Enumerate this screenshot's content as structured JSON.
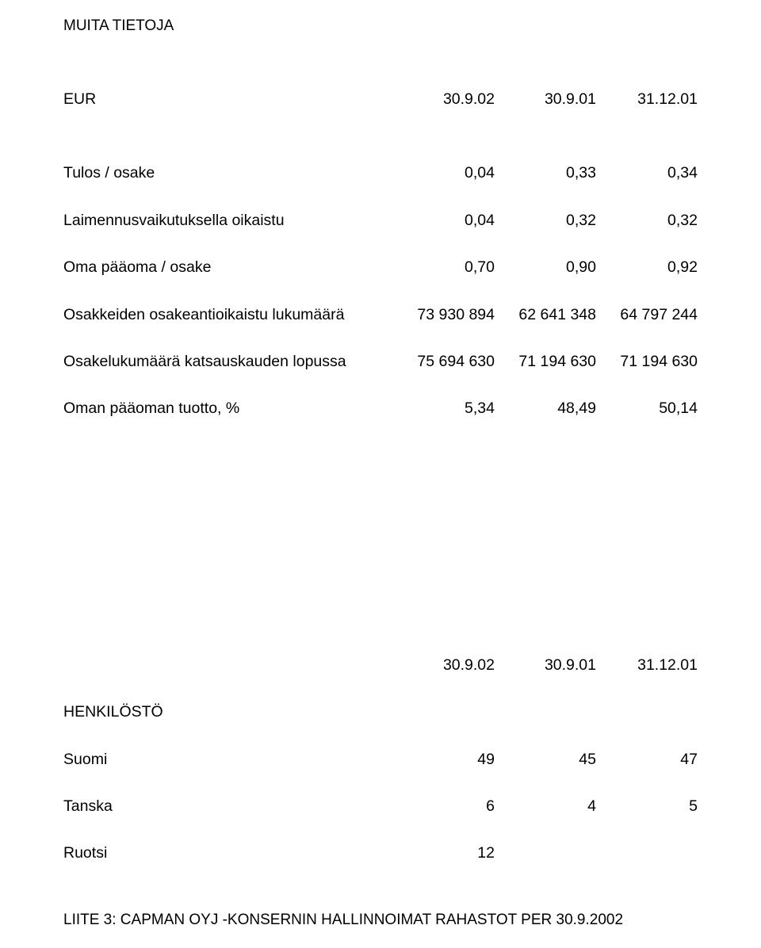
{
  "section1": {
    "title": "MUITA TIETOJA",
    "header": {
      "currency": "EUR",
      "c1": "30.9.02",
      "c2": "30.9.01",
      "c3": "31.12.01"
    },
    "rows": [
      {
        "label": "Tulos / osake",
        "c1": "0,04",
        "c2": "0,33",
        "c3": "0,34"
      },
      {
        "label": "Laimennusvaikutuksella oikaistu",
        "c1": "0,04",
        "c2": "0,32",
        "c3": "0,32"
      },
      {
        "label": "Oma pääoma / osake",
        "c1": "0,70",
        "c2": "0,90",
        "c3": "0,92"
      },
      {
        "label": "Osakkeiden osakeantioikaistu lukumäärä",
        "c1": "73 930 894",
        "c2": "62 641 348",
        "c3": "64 797 244"
      },
      {
        "label": "Osakelukumäärä katsauskauden lopussa",
        "c1": "75 694 630",
        "c2": "71 194 630",
        "c3": "71 194 630"
      },
      {
        "label": "Oman pääoman tuotto, %",
        "c1": "5,34",
        "c2": "48,49",
        "c3": "50,14"
      }
    ]
  },
  "section2": {
    "header": {
      "c1": "30.9.02",
      "c2": "30.9.01",
      "c3": "31.12.01"
    },
    "title": "HENKILÖSTÖ",
    "rows": [
      {
        "label": "Suomi",
        "c1": "49",
        "c2": "45",
        "c3": "47"
      },
      {
        "label": "Tanska",
        "c1": "6",
        "c2": "4",
        "c3": "5"
      },
      {
        "label": "Ruotsi",
        "c1": "12",
        "c2": "",
        "c3": ""
      }
    ]
  },
  "footer": "LIITE 3: CAPMAN OYJ -KONSERNIN HALLINNOIMAT RAHASTOT PER 30.9.2002"
}
